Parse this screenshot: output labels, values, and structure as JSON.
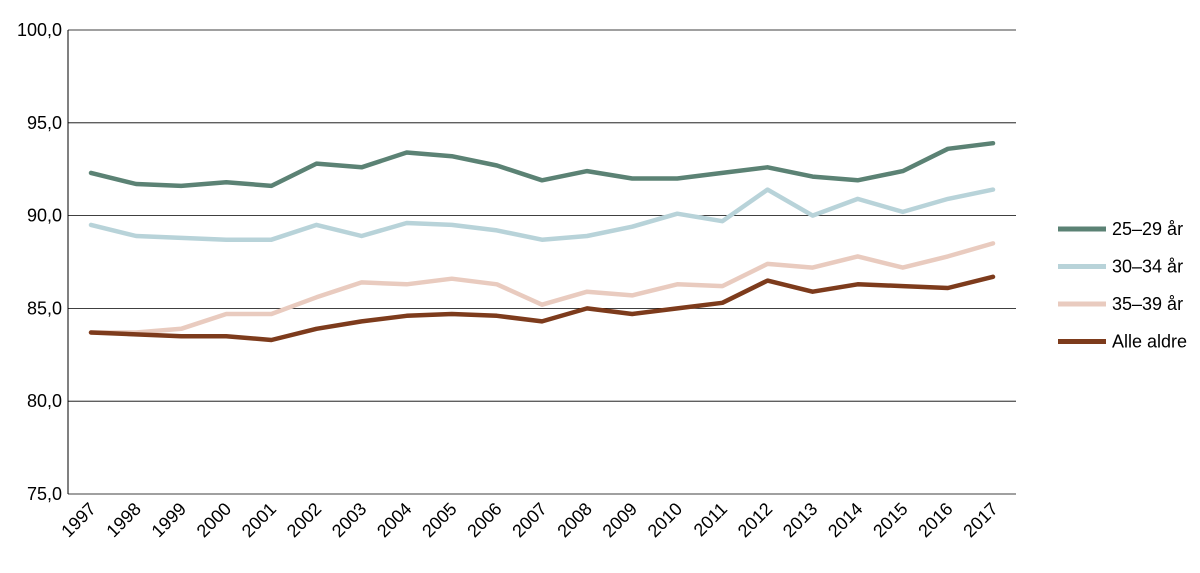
{
  "chart_data": {
    "type": "line",
    "title": "",
    "xlabel": "",
    "ylabel": "",
    "x": [
      "1997",
      "1998",
      "1999",
      "2000",
      "2001",
      "2002",
      "2003",
      "2004",
      "2005",
      "2006",
      "2007",
      "2008",
      "2009",
      "2010",
      "2011",
      "2012",
      "2013",
      "2014",
      "2015",
      "2016",
      "2017"
    ],
    "ylim": [
      75,
      100
    ],
    "yticks": [
      "75,0",
      "80,0",
      "85,0",
      "90,0",
      "95,0",
      "100,0"
    ],
    "grid": true,
    "legend": "right",
    "series": [
      {
        "name": "25–29 år",
        "color": "#5b8274",
        "values": [
          92.3,
          91.7,
          91.6,
          91.8,
          91.6,
          92.8,
          92.6,
          93.4,
          93.2,
          92.7,
          91.9,
          92.4,
          92.0,
          92.0,
          92.3,
          92.6,
          92.1,
          91.9,
          92.4,
          93.6,
          93.9
        ]
      },
      {
        "name": "30–34 år",
        "color": "#b8d3d9",
        "values": [
          89.5,
          88.9,
          88.8,
          88.7,
          88.7,
          89.5,
          88.9,
          89.6,
          89.5,
          89.2,
          88.7,
          88.9,
          89.4,
          90.1,
          89.7,
          91.4,
          90.0,
          90.9,
          90.2,
          90.9,
          91.4
        ]
      },
      {
        "name": "35–39 år",
        "color": "#e9cbbf",
        "values": [
          83.7,
          83.7,
          83.9,
          84.7,
          84.7,
          85.6,
          86.4,
          86.3,
          86.6,
          86.3,
          85.2,
          85.9,
          85.7,
          86.3,
          86.2,
          87.4,
          87.2,
          87.8,
          87.2,
          87.8,
          88.5
        ]
      },
      {
        "name": "Alle aldre",
        "color": "#7d3b1c",
        "values": [
          83.7,
          83.6,
          83.5,
          83.5,
          83.3,
          83.9,
          84.3,
          84.6,
          84.7,
          84.6,
          84.3,
          85.0,
          84.7,
          85.0,
          85.3,
          86.5,
          85.9,
          86.3,
          86.2,
          86.1,
          86.7
        ]
      }
    ]
  }
}
